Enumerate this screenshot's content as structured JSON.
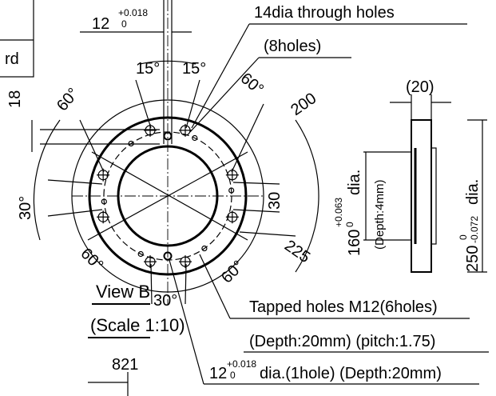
{
  "top_dimension": {
    "value": "12",
    "tol_upper": "+0.018",
    "tol_lower": "0"
  },
  "table_fragment": "rd",
  "callouts": {
    "through_holes": "14dia through holes",
    "through_holes_count": "(8holes)",
    "tapped": "Tapped holes M12(6holes)",
    "tapped_detail": "(Depth:20mm) (pitch:1.75)",
    "pin_value": "12",
    "pin_tol_upper": "+0.018",
    "pin_tol_lower": "0",
    "pin_detail": "dia.(1hole) (Depth:20mm)"
  },
  "angles": {
    "top_left": "15°",
    "top_right": "15°",
    "upper_left": "60°",
    "upper_right": "60°",
    "lower_left": "60°",
    "lower_right": "60°",
    "left": "30°",
    "right": "30",
    "bottom": "30°"
  },
  "dimensions": {
    "pcd_200": "200",
    "pcd_225": "225",
    "offset": "18",
    "width": "(20)",
    "bore": "160",
    "bore_tol_upper": "+0.063",
    "bore_tol_lower": "0",
    "bore_suffix": "dia.",
    "depth": "(Depth:4mm)",
    "outer": "250",
    "outer_tol_upper": "0",
    "outer_tol_lower": "-0.072",
    "outer_suffix": "dia."
  },
  "view": {
    "title": "View B",
    "scale": "(Scale 1:10)",
    "length": "821"
  }
}
